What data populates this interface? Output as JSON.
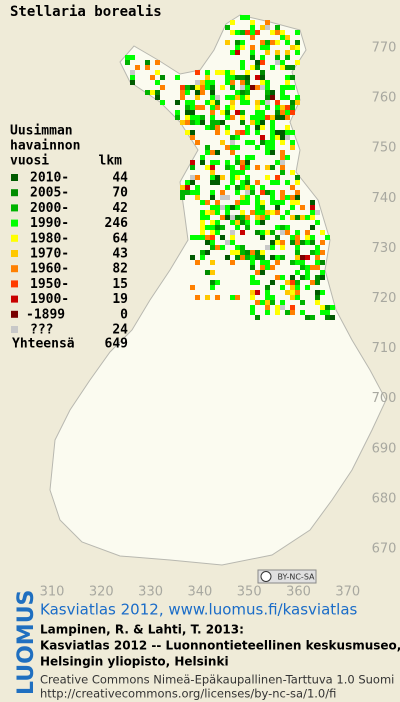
{
  "title": "Stellaria borealis",
  "legend": {
    "heading": [
      "Uusimman",
      "havainnon"
    ],
    "col1": "vuosi",
    "col2": "lkm",
    "rows": [
      {
        "label": "2010-",
        "count": 44,
        "color": "#005a00"
      },
      {
        "label": "2005-",
        "count": 70,
        "color": "#008c00"
      },
      {
        "label": "2000-",
        "count": 42,
        "color": "#00b400"
      },
      {
        "label": "1990-",
        "count": 246,
        "color": "#00ff00"
      },
      {
        "label": "1980-",
        "count": 64,
        "color": "#ffff00"
      },
      {
        "label": "1970-",
        "count": 43,
        "color": "#ffc800"
      },
      {
        "label": "1960-",
        "count": 82,
        "color": "#ff8000"
      },
      {
        "label": "1950-",
        "count": 15,
        "color": "#ff3c00"
      },
      {
        "label": "1900-",
        "count": 19,
        "color": "#c80000"
      },
      {
        "label": "-1899",
        "count": 0,
        "color": "#780000"
      },
      {
        "label": "???",
        "count": 24,
        "color": "#c8c8c8"
      }
    ],
    "total_label": "Yhteensä",
    "total": 649
  },
  "x_grid_labels": [
    310,
    320,
    330,
    340,
    350,
    360,
    370
  ],
  "y_grid_labels": [
    770,
    760,
    750,
    740,
    730,
    720,
    710,
    700,
    690,
    680,
    670
  ],
  "license_badge": "BY-NC-SA",
  "footer": {
    "logo": "LUOMUS",
    "link": "Kasviatlas 2012, www.luomus.fi/kasviatlas",
    "citation": [
      "Lampinen, R. & Lahti, T. 2013:",
      "Kasviatlas 2012 -- Luonnontieteellinen keskusmuseo,",
      "Helsingin yliopisto, Helsinki"
    ],
    "license": [
      "Creative Commons Nimeä-Epäkaupallinen-Tarttuva 1.0 Suomi",
      "http://creativecommons.org/licenses/by-nc-sa/1.0/fi"
    ]
  }
}
